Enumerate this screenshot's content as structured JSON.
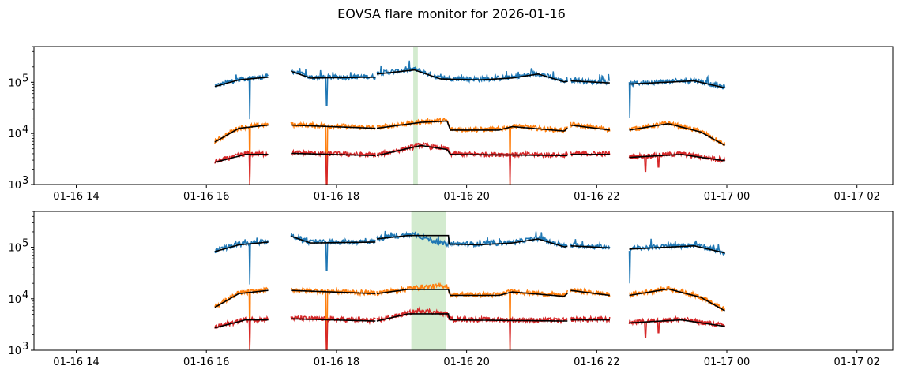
{
  "title": "EOVSA flare monitor for 2026-01-16",
  "colors": {
    "low": "#1f77b4",
    "mid": "#ff7f0e",
    "high": "#d62728",
    "fit": "#000000",
    "flare_shade": "#a8d8a0"
  },
  "chart_data": [
    {
      "type": "line",
      "title": "",
      "xlabel": "",
      "ylabel": "",
      "yscale": "log",
      "xlim_hours": [
        13.35,
        26.55
      ],
      "ylim": [
        1000,
        500000
      ],
      "x_ticks": [
        "01-16 14",
        "01-16 16",
        "01-16 18",
        "01-16 20",
        "01-16 22",
        "01-17 00",
        "01-17 02"
      ],
      "x_tick_hours": [
        14,
        16,
        18,
        20,
        22,
        24,
        26
      ],
      "y_ticks": [
        "10",
        "10",
        "10"
      ],
      "y_tick_exps": [
        "3",
        "4",
        "5"
      ],
      "y_tick_values": [
        1000,
        10000,
        100000
      ],
      "shaded_interval_hours": [
        19.18,
        19.25
      ],
      "fit_flat_in_shade": false,
      "segments_hours": [
        [
          16.13,
          16.95
        ],
        [
          17.3,
          18.6
        ],
        [
          18.62,
          21.55
        ],
        [
          21.6,
          22.2
        ],
        [
          22.5,
          23.97
        ]
      ],
      "series": [
        {
          "key": "low",
          "base_by_hour": [
            [
              16.13,
              85000
            ],
            [
              16.5,
              115000
            ],
            [
              16.95,
              130000
            ],
            [
              17.3,
              170000
            ],
            [
              17.6,
              125000
            ],
            [
              18.6,
              130000
            ],
            [
              18.62,
              150000
            ],
            [
              19.2,
              180000
            ],
            [
              19.6,
              120000
            ],
            [
              20.2,
              115000
            ],
            [
              20.7,
              125000
            ],
            [
              21.1,
              150000
            ],
            [
              21.5,
              105000
            ],
            [
              21.6,
              110000
            ],
            [
              22.2,
              100000
            ],
            [
              22.5,
              95000
            ],
            [
              23.5,
              110000
            ],
            [
              23.97,
              80000
            ]
          ],
          "dips": [
            [
              16.67,
              19000
            ],
            [
              17.85,
              35000
            ],
            [
              22.51,
              20000
            ]
          ]
        },
        {
          "key": "mid",
          "base_by_hour": [
            [
              16.13,
              7000
            ],
            [
              16.5,
              13000
            ],
            [
              16.95,
              15000
            ],
            [
              17.3,
              15000
            ],
            [
              18.6,
              13000
            ],
            [
              18.62,
              13000
            ],
            [
              19.3,
              17000
            ],
            [
              19.7,
              18000
            ],
            [
              19.75,
              12000
            ],
            [
              20.5,
              12000
            ],
            [
              20.7,
              14000
            ],
            [
              21.5,
              11500
            ],
            [
              21.6,
              15000
            ],
            [
              22.2,
              12000
            ],
            [
              22.5,
              12000
            ],
            [
              23.1,
              16000
            ],
            [
              23.6,
              11000
            ],
            [
              23.97,
              6000
            ]
          ],
          "dips": [
            [
              16.67,
              1000
            ],
            [
              17.85,
              1000
            ],
            [
              20.67,
              1000
            ]
          ]
        },
        {
          "key": "high",
          "base_by_hour": [
            [
              16.13,
              2800
            ],
            [
              16.6,
              4000
            ],
            [
              16.95,
              4000
            ],
            [
              17.3,
              4200
            ],
            [
              18.6,
              3800
            ],
            [
              18.62,
              3800
            ],
            [
              19.3,
              6000
            ],
            [
              19.7,
              5000
            ],
            [
              19.75,
              4000
            ],
            [
              21.55,
              3800
            ],
            [
              21.6,
              4000
            ],
            [
              22.2,
              4000
            ],
            [
              22.5,
              3500
            ],
            [
              23.3,
              4000
            ],
            [
              23.97,
              3000
            ]
          ],
          "dips": [
            [
              16.67,
              1000
            ],
            [
              17.85,
              1000
            ],
            [
              20.67,
              1000
            ],
            [
              22.75,
              1800
            ],
            [
              22.95,
              2200
            ]
          ]
        }
      ]
    },
    {
      "type": "line",
      "title": "",
      "xlabel": "",
      "ylabel": "",
      "yscale": "log",
      "xlim_hours": [
        13.35,
        26.55
      ],
      "ylim": [
        1000,
        500000
      ],
      "x_ticks": [
        "01-16 14",
        "01-16 16",
        "01-16 18",
        "01-16 20",
        "01-16 22",
        "01-17 00",
        "01-17 02"
      ],
      "x_tick_hours": [
        14,
        16,
        18,
        20,
        22,
        24,
        26
      ],
      "y_ticks": [
        "10",
        "10",
        "10"
      ],
      "y_tick_exps": [
        "3",
        "4",
        "5"
      ],
      "y_tick_values": [
        1000,
        10000,
        100000
      ],
      "shaded_interval_hours": [
        19.15,
        19.68
      ],
      "fit_flat_in_shade": true,
      "segments_hours": [
        [
          16.13,
          16.95
        ],
        [
          17.3,
          18.6
        ],
        [
          18.62,
          21.55
        ],
        [
          21.6,
          22.2
        ],
        [
          22.5,
          23.97
        ]
      ],
      "series": [
        {
          "key": "low",
          "base_by_hour": [
            [
              16.13,
              85000
            ],
            [
              16.5,
              115000
            ],
            [
              16.95,
              130000
            ],
            [
              17.3,
              170000
            ],
            [
              17.6,
              125000
            ],
            [
              18.6,
              130000
            ],
            [
              18.62,
              150000
            ],
            [
              19.2,
              180000
            ],
            [
              19.6,
              120000
            ],
            [
              20.2,
              115000
            ],
            [
              20.7,
              125000
            ],
            [
              21.1,
              150000
            ],
            [
              21.5,
              105000
            ],
            [
              21.6,
              110000
            ],
            [
              22.2,
              100000
            ],
            [
              22.5,
              95000
            ],
            [
              23.5,
              110000
            ],
            [
              23.97,
              80000
            ]
          ],
          "dips": [
            [
              16.67,
              19000
            ],
            [
              17.85,
              35000
            ],
            [
              22.51,
              20000
            ]
          ]
        },
        {
          "key": "mid",
          "base_by_hour": [
            [
              16.13,
              7000
            ],
            [
              16.5,
              13000
            ],
            [
              16.95,
              15000
            ],
            [
              17.3,
              15000
            ],
            [
              18.6,
              13000
            ],
            [
              18.62,
              13000
            ],
            [
              19.3,
              17000
            ],
            [
              19.7,
              18000
            ],
            [
              19.75,
              12000
            ],
            [
              20.5,
              12000
            ],
            [
              20.7,
              14000
            ],
            [
              21.5,
              11500
            ],
            [
              21.6,
              15000
            ],
            [
              22.2,
              12000
            ],
            [
              22.5,
              12000
            ],
            [
              23.1,
              16000
            ],
            [
              23.6,
              11000
            ],
            [
              23.97,
              6000
            ]
          ],
          "dips": [
            [
              16.67,
              1000
            ],
            [
              17.85,
              1000
            ],
            [
              20.67,
              1000
            ]
          ]
        },
        {
          "key": "high",
          "base_by_hour": [
            [
              16.13,
              2800
            ],
            [
              16.6,
              4000
            ],
            [
              16.95,
              4000
            ],
            [
              17.3,
              4200
            ],
            [
              18.6,
              3800
            ],
            [
              18.62,
              3800
            ],
            [
              19.3,
              6000
            ],
            [
              19.7,
              5000
            ],
            [
              19.75,
              4000
            ],
            [
              21.55,
              3800
            ],
            [
              21.6,
              4000
            ],
            [
              22.2,
              4000
            ],
            [
              22.5,
              3500
            ],
            [
              23.3,
              4000
            ],
            [
              23.97,
              3000
            ]
          ],
          "dips": [
            [
              16.67,
              1000
            ],
            [
              17.85,
              1000
            ],
            [
              20.67,
              1000
            ],
            [
              22.75,
              1800
            ],
            [
              22.95,
              2200
            ]
          ]
        }
      ]
    }
  ]
}
